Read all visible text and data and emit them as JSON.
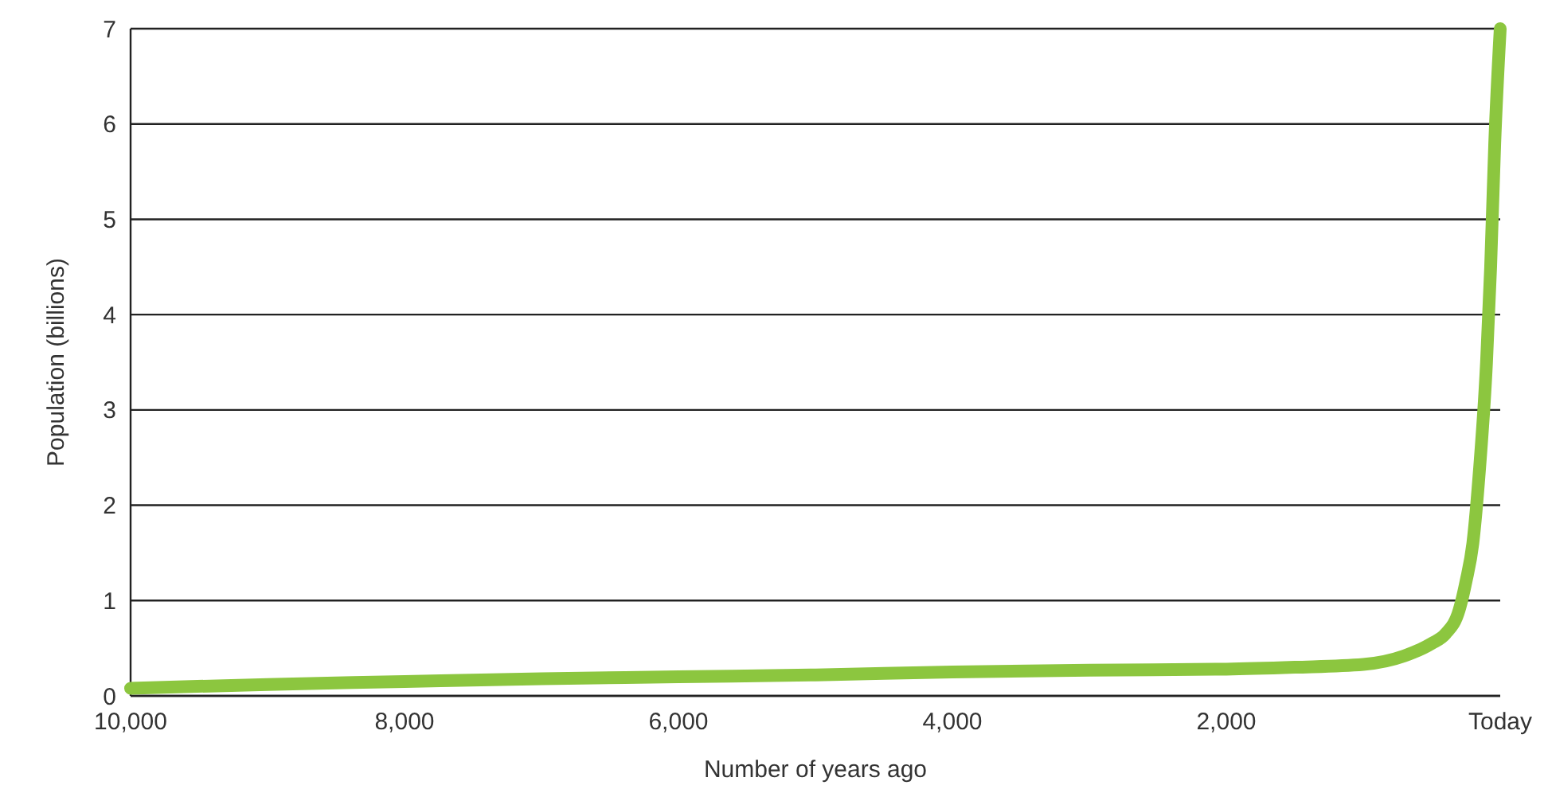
{
  "chart_data": {
    "type": "line",
    "xlabel": "Number of years ago",
    "ylabel": "Population (billions)",
    "xlim": [
      10000,
      0
    ],
    "xticks": [
      {
        "value": 10000,
        "label": "10,000"
      },
      {
        "value": 8000,
        "label": "8,000"
      },
      {
        "value": 6000,
        "label": "6,000"
      },
      {
        "value": 4000,
        "label": "4,000"
      },
      {
        "value": 2000,
        "label": "2,000"
      },
      {
        "value": 0,
        "label": "Today"
      }
    ],
    "ylim": [
      0,
      7
    ],
    "yticks": [
      0,
      1,
      2,
      3,
      4,
      5,
      6,
      7
    ],
    "grid": "y",
    "line_style": "solid",
    "x": [
      10000,
      9000,
      8000,
      7000,
      6000,
      5000,
      4000,
      3000,
      2000,
      1500,
      1000,
      700,
      500,
      400,
      300,
      250,
      200,
      150,
      100,
      70,
      40,
      0
    ],
    "series": [
      {
        "color": "#8cc63f",
        "values": [
          0.08,
          0.12,
          0.15,
          0.18,
          0.2,
          0.22,
          0.25,
          0.27,
          0.28,
          0.3,
          0.33,
          0.42,
          0.55,
          0.65,
          0.9,
          1.2,
          1.6,
          2.4,
          3.5,
          4.5,
          5.8,
          7
        ]
      }
    ]
  }
}
